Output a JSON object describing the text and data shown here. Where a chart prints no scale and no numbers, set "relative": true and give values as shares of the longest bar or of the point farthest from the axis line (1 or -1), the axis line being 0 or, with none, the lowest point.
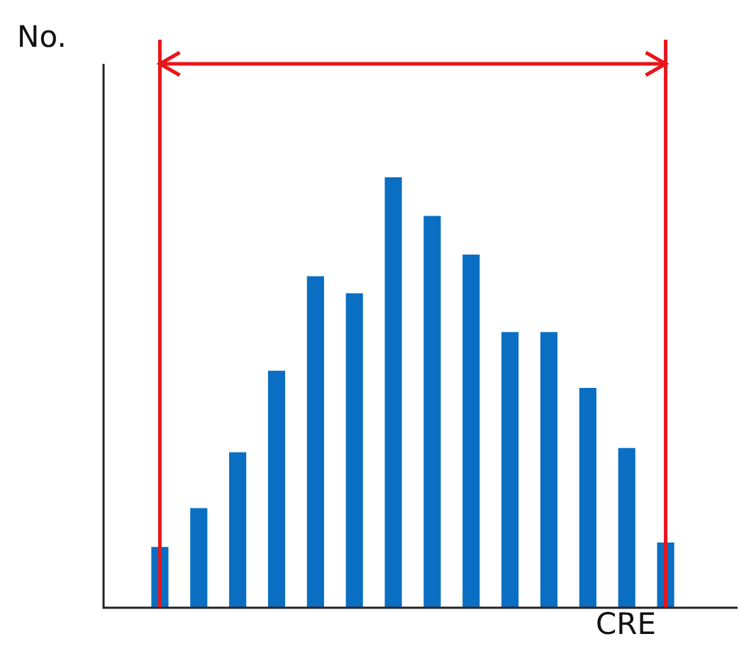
{
  "chart_data": {
    "type": "bar",
    "relative": true,
    "xlabel": "CRE",
    "ylabel": "No.",
    "categories": [
      null,
      null,
      null,
      null,
      null,
      null,
      null,
      null,
      null,
      null,
      null,
      null,
      null,
      null
    ],
    "values": [
      0.14,
      0.23,
      0.36,
      0.55,
      0.77,
      0.73,
      1,
      0.91,
      0.82,
      0.64,
      0.64,
      0.51,
      0.37,
      0.15
    ],
    "color": "#0a6fc2",
    "grid": false,
    "legend": false
  }
}
